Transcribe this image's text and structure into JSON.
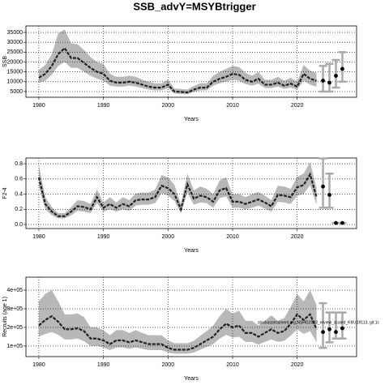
{
  "chart_data": [
    {
      "type": "line",
      "title": "SSB_advY=MSYBtrigger",
      "xlabel": "Years",
      "ylabel": "SSB",
      "x": [
        1980,
        1981,
        1982,
        1983,
        1984,
        1985,
        1986,
        1987,
        1988,
        1989,
        1990,
        1991,
        1992,
        1993,
        1994,
        1995,
        1996,
        1997,
        1998,
        1999,
        2000,
        2001,
        2002,
        2003,
        2004,
        2005,
        2006,
        2007,
        2008,
        2009,
        2010,
        2011,
        2012,
        2013,
        2014,
        2015,
        2016,
        2017,
        2018,
        2019,
        2020,
        2021,
        2022,
        2023
      ],
      "values": [
        12000,
        14000,
        18000,
        24000,
        27000,
        22000,
        22000,
        19500,
        17000,
        15000,
        14000,
        10500,
        9500,
        9500,
        10000,
        9500,
        8500,
        7500,
        7000,
        7000,
        8500,
        5000,
        4800,
        4500,
        6000,
        7000,
        7000,
        10000,
        11500,
        12500,
        14000,
        13500,
        11000,
        10000,
        11500,
        8500,
        8500,
        9500,
        8000,
        9000,
        7500,
        14000,
        11500,
        10500
      ],
      "lower": [
        9500,
        10500,
        13500,
        18000,
        20000,
        17000,
        17000,
        15000,
        13000,
        11500,
        10500,
        8000,
        7500,
        7500,
        8000,
        7500,
        6800,
        6000,
        5600,
        5600,
        6800,
        4000,
        3800,
        3600,
        4800,
        5600,
        5600,
        8000,
        9200,
        10000,
        11000,
        10500,
        8800,
        8000,
        9000,
        6800,
        6800,
        7500,
        6400,
        7000,
        6000,
        10500,
        8500,
        7500
      ],
      "upper": [
        16000,
        18500,
        24000,
        34500,
        36500,
        29500,
        29000,
        26000,
        22500,
        20000,
        19000,
        14000,
        12500,
        12500,
        13000,
        12500,
        11000,
        10000,
        9200,
        9200,
        11000,
        6500,
        6300,
        6000,
        7800,
        9200,
        9200,
        13000,
        15000,
        16500,
        18000,
        17500,
        14500,
        13000,
        15000,
        11000,
        11000,
        12500,
        10500,
        12000,
        10000,
        18500,
        15500,
        14500
      ],
      "projection": {
        "x": [
          2024,
          2025,
          2026,
          2027
        ],
        "values": [
          10500,
          9500,
          13000,
          16500
        ],
        "lower": [
          5000,
          5000,
          7000,
          10000
        ],
        "upper": [
          18000,
          19000,
          21000,
          25000
        ]
      },
      "xlim": [
        1978,
        2029.2
      ],
      "ylim": [
        2100,
        38300
      ],
      "xticks": [
        1980,
        1990,
        2000,
        2010,
        2020
      ],
      "yticks": [
        5000,
        10000,
        15000,
        20000,
        25000,
        30000,
        35000
      ],
      "grid": true,
      "color": "#222222",
      "band_color": "#b8b8b8",
      "bar_color": "#aaaaaa"
    },
    {
      "type": "line",
      "xlabel": "Years",
      "ylabel": "F2-4",
      "x": [
        1980,
        1981,
        1982,
        1983,
        1984,
        1985,
        1986,
        1987,
        1988,
        1989,
        1990,
        1991,
        1992,
        1993,
        1994,
        1995,
        1996,
        1997,
        1998,
        1999,
        2000,
        2001,
        2002,
        2003,
        2004,
        2005,
        2006,
        2007,
        2008,
        2009,
        2010,
        2011,
        2012,
        2013,
        2014,
        2015,
        2016,
        2017,
        2018,
        2019,
        2020,
        2021,
        2022,
        2023
      ],
      "values": [
        0.62,
        0.27,
        0.17,
        0.11,
        0.11,
        0.17,
        0.24,
        0.23,
        0.2,
        0.36,
        0.22,
        0.27,
        0.22,
        0.27,
        0.24,
        0.32,
        0.33,
        0.33,
        0.36,
        0.51,
        0.48,
        0.4,
        0.2,
        0.53,
        0.34,
        0.38,
        0.36,
        0.3,
        0.45,
        0.48,
        0.3,
        0.3,
        0.27,
        0.3,
        0.33,
        0.29,
        0.24,
        0.39,
        0.38,
        0.36,
        0.49,
        0.52,
        0.66,
        0.36
      ],
      "lower": [
        0.5,
        0.2,
        0.12,
        0.08,
        0.08,
        0.12,
        0.18,
        0.17,
        0.15,
        0.28,
        0.17,
        0.2,
        0.17,
        0.2,
        0.18,
        0.25,
        0.26,
        0.26,
        0.28,
        0.41,
        0.38,
        0.31,
        0.15,
        0.42,
        0.26,
        0.29,
        0.28,
        0.22,
        0.35,
        0.37,
        0.22,
        0.22,
        0.2,
        0.22,
        0.25,
        0.21,
        0.17,
        0.3,
        0.29,
        0.27,
        0.38,
        0.4,
        0.52,
        0.26
      ],
      "upper": [
        0.78,
        0.36,
        0.23,
        0.15,
        0.15,
        0.23,
        0.32,
        0.31,
        0.27,
        0.46,
        0.29,
        0.36,
        0.29,
        0.36,
        0.32,
        0.41,
        0.42,
        0.42,
        0.46,
        0.65,
        0.62,
        0.52,
        0.27,
        0.67,
        0.45,
        0.5,
        0.47,
        0.4,
        0.58,
        0.62,
        0.4,
        0.4,
        0.36,
        0.4,
        0.43,
        0.38,
        0.32,
        0.51,
        0.5,
        0.47,
        0.63,
        0.67,
        0.82,
        0.48
      ],
      "projection": {
        "x": [
          2024,
          2025,
          2026,
          2027
        ],
        "values": [
          0.5,
          0.39,
          0.02,
          0.02
        ],
        "lower": [
          0.22,
          0.22,
          0.02,
          0.02
        ],
        "upper": [
          0.87,
          0.67,
          0.02,
          0.02
        ]
      },
      "xlim": [
        1978,
        2029.2
      ],
      "ylim": [
        -0.053,
        0.875
      ],
      "xticks": [
        1980,
        1990,
        2000,
        2010,
        2020
      ],
      "yticks": [
        {
          "value": 0,
          "label": "0.0"
        },
        0.2,
        0.4,
        0.6,
        0.8
      ],
      "grid": true,
      "color": "#222222",
      "band_color": "#b8b8b8",
      "bar_color": "#aaaaaa"
    },
    {
      "type": "line",
      "xlabel": "Years",
      "ylabel": "Recruits (age 1)",
      "annotation": "stockassessment.org,NSHG2023_review_scaled_KM,r19113, git:1c",
      "x": [
        1980,
        1981,
        1982,
        1983,
        1984,
        1985,
        1986,
        1987,
        1988,
        1989,
        1990,
        1991,
        1992,
        1993,
        1994,
        1995,
        1996,
        1997,
        1998,
        1999,
        2000,
        2001,
        2002,
        2003,
        2004,
        2005,
        2006,
        2007,
        2008,
        2009,
        2010,
        2011,
        2012,
        2013,
        2014,
        2015,
        2016,
        2017,
        2018,
        2019,
        2020,
        2021,
        2022,
        2023
      ],
      "values": [
        210000,
        240000,
        260000,
        230000,
        190000,
        190000,
        195000,
        180000,
        140000,
        140000,
        130000,
        110000,
        130000,
        130000,
        120000,
        130000,
        120000,
        110000,
        110000,
        110000,
        90000,
        80000,
        80000,
        80000,
        90000,
        110000,
        130000,
        150000,
        190000,
        220000,
        200000,
        210000,
        170000,
        170000,
        150000,
        170000,
        190000,
        170000,
        180000,
        220000,
        270000,
        240000,
        270000,
        190000
      ],
      "lower": [
        150000,
        165000,
        175000,
        160000,
        135000,
        135000,
        140000,
        125000,
        100000,
        100000,
        92000,
        78000,
        92000,
        92000,
        85000,
        92000,
        85000,
        78000,
        78000,
        78000,
        65000,
        58000,
        58000,
        58000,
        65000,
        80000,
        95000,
        110000,
        140000,
        160000,
        145000,
        150000,
        122000,
        122000,
        108000,
        122000,
        135000,
        122000,
        128000,
        155000,
        190000,
        165000,
        180000,
        120000
      ],
      "upper": [
        340000,
        380000,
        400000,
        340000,
        270000,
        270000,
        275000,
        255000,
        200000,
        200000,
        185000,
        158000,
        185000,
        185000,
        170000,
        185000,
        170000,
        158000,
        158000,
        158000,
        130000,
        115000,
        115000,
        115000,
        128000,
        155000,
        180000,
        210000,
        260000,
        300000,
        275000,
        290000,
        235000,
        235000,
        210000,
        235000,
        265000,
        235000,
        250000,
        310000,
        380000,
        340000,
        400000,
        320000
      ],
      "projection": {
        "x": [
          2024,
          2025,
          2026,
          2027
        ],
        "values": [
          175000,
          190000,
          175000,
          195000
        ],
        "lower": [
          90000,
          120000,
          140000,
          140000
        ],
        "upper": [
          330000,
          280000,
          280000,
          280000
        ]
      },
      "xlim": [
        1978,
        2029.2
      ],
      "ylim": [
        43000,
        470000
      ],
      "xticks": [
        1980,
        1990,
        2000,
        2010,
        2020
      ],
      "yticks": [
        {
          "value": 100000,
          "label": "1e+05"
        },
        {
          "value": 200000,
          "label": "2e+05"
        },
        {
          "value": 300000,
          "label": "3e+05"
        },
        {
          "value": 400000,
          "label": "4e+05"
        }
      ],
      "grid": true,
      "color": "#222222",
      "band_color": "#b8b8b8",
      "bar_color": "#aaaaaa"
    }
  ]
}
